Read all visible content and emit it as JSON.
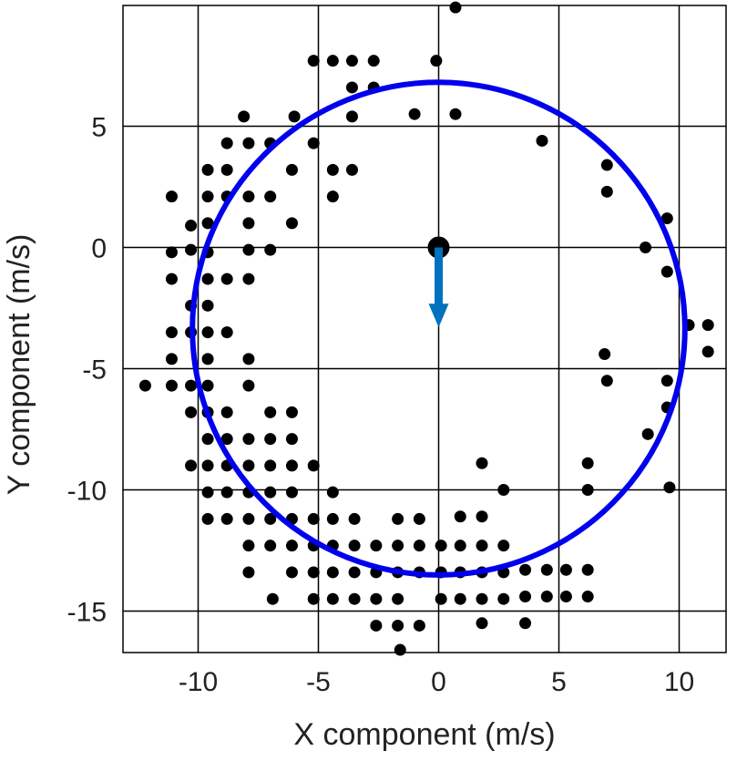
{
  "chart_data": {
    "type": "scatter",
    "title": "",
    "xlabel": "X component (m/s)",
    "ylabel": "Y component (m/s)",
    "xlim": [
      -13,
      13
    ],
    "ylim": [
      -16.7,
      10
    ],
    "grid": true,
    "xticks": [
      -10,
      -5,
      0,
      5,
      10
    ],
    "yticks": [
      5,
      0,
      -5,
      -10,
      -15
    ],
    "xtick_labels": [
      "-10",
      "-5",
      "0",
      "5",
      "10"
    ],
    "ytick_labels": [
      "5",
      "0",
      "-5",
      "-10",
      "-15"
    ],
    "colors": {
      "points": "#000000",
      "circle": "#0000ee",
      "arrow": "#0072bd",
      "grid": "#000000"
    },
    "circle": {
      "center": [
        0,
        -3.35
      ],
      "radius": 10.2
    },
    "origin_marker": [
      0,
      0
    ],
    "arrow": {
      "from": [
        0,
        0
      ],
      "to": [
        0,
        -3.3
      ]
    },
    "points": [
      [
        0.7,
        9.9
      ],
      [
        -5.2,
        7.7
      ],
      [
        -4.4,
        7.7
      ],
      [
        -3.6,
        7.7
      ],
      [
        -2.7,
        7.7
      ],
      [
        -0.1,
        7.7
      ],
      [
        -3.6,
        6.6
      ],
      [
        -2.7,
        6.6
      ],
      [
        -8.1,
        5.4
      ],
      [
        -6.0,
        5.4
      ],
      [
        -3.6,
        5.4
      ],
      [
        -1.0,
        5.5
      ],
      [
        0.7,
        5.5
      ],
      [
        -8.8,
        4.3
      ],
      [
        -7.9,
        4.3
      ],
      [
        -7.0,
        4.3
      ],
      [
        -5.2,
        4.3
      ],
      [
        4.3,
        4.4
      ],
      [
        -9.6,
        3.2
      ],
      [
        -8.8,
        3.2
      ],
      [
        -6.1,
        3.2
      ],
      [
        -4.4,
        3.2
      ],
      [
        -3.6,
        3.2
      ],
      [
        7.0,
        3.4
      ],
      [
        -11.1,
        2.1
      ],
      [
        -9.6,
        2.1
      ],
      [
        -8.8,
        2.1
      ],
      [
        -7.9,
        2.1
      ],
      [
        -7.0,
        2.1
      ],
      [
        -4.4,
        2.1
      ],
      [
        7.0,
        2.3
      ],
      [
        -10.3,
        0.9
      ],
      [
        -9.6,
        1.0
      ],
      [
        -7.9,
        1.0
      ],
      [
        -6.1,
        1.0
      ],
      [
        9.5,
        1.2
      ],
      [
        -11.1,
        -0.2
      ],
      [
        -10.3,
        -0.1
      ],
      [
        -9.6,
        -0.2
      ],
      [
        -7.9,
        -0.1
      ],
      [
        -7.0,
        -0.1
      ],
      [
        8.6,
        0.0
      ],
      [
        -11.1,
        -1.3
      ],
      [
        -9.6,
        -1.3
      ],
      [
        -8.8,
        -1.3
      ],
      [
        -7.9,
        -1.3
      ],
      [
        9.5,
        -1.0
      ],
      [
        -10.3,
        -2.4
      ],
      [
        -9.6,
        -2.4
      ],
      [
        -11.1,
        -3.5
      ],
      [
        -10.3,
        -3.5
      ],
      [
        -9.6,
        -3.5
      ],
      [
        -8.8,
        -3.5
      ],
      [
        10.4,
        -3.2
      ],
      [
        11.2,
        -3.2
      ],
      [
        -11.1,
        -4.6
      ],
      [
        -9.6,
        -4.6
      ],
      [
        -7.9,
        -4.6
      ],
      [
        6.9,
        -4.4
      ],
      [
        11.2,
        -4.3
      ],
      [
        -12.2,
        -5.7
      ],
      [
        -11.1,
        -5.7
      ],
      [
        -10.3,
        -5.7
      ],
      [
        -9.6,
        -5.7
      ],
      [
        -7.9,
        -5.7
      ],
      [
        7.0,
        -5.5
      ],
      [
        9.5,
        -5.5
      ],
      [
        -10.3,
        -6.8
      ],
      [
        -9.6,
        -6.8
      ],
      [
        -8.8,
        -6.8
      ],
      [
        -7.0,
        -6.8
      ],
      [
        -6.1,
        -6.8
      ],
      [
        9.5,
        -6.6
      ],
      [
        -9.6,
        -7.9
      ],
      [
        -8.8,
        -7.9
      ],
      [
        -7.9,
        -7.9
      ],
      [
        -7.0,
        -7.9
      ],
      [
        -6.1,
        -7.9
      ],
      [
        8.7,
        -7.7
      ],
      [
        -10.3,
        -9.0
      ],
      [
        -9.6,
        -9.0
      ],
      [
        -8.8,
        -9.0
      ],
      [
        -7.9,
        -9.0
      ],
      [
        -7.0,
        -9.0
      ],
      [
        -6.1,
        -9.0
      ],
      [
        -5.2,
        -9.0
      ],
      [
        1.8,
        -8.9
      ],
      [
        6.2,
        -8.9
      ],
      [
        -9.6,
        -10.1
      ],
      [
        -8.8,
        -10.1
      ],
      [
        -7.9,
        -10.1
      ],
      [
        -7.0,
        -10.1
      ],
      [
        -6.1,
        -10.1
      ],
      [
        -4.4,
        -10.1
      ],
      [
        2.7,
        -10.0
      ],
      [
        6.2,
        -10.0
      ],
      [
        9.6,
        -9.9
      ],
      [
        -9.6,
        -11.2
      ],
      [
        -8.8,
        -11.2
      ],
      [
        -7.9,
        -11.2
      ],
      [
        -7.0,
        -11.2
      ],
      [
        -6.1,
        -11.2
      ],
      [
        -5.2,
        -11.2
      ],
      [
        -4.4,
        -11.2
      ],
      [
        -3.5,
        -11.2
      ],
      [
        -1.7,
        -11.2
      ],
      [
        -0.8,
        -11.2
      ],
      [
        0.9,
        -11.1
      ],
      [
        1.8,
        -11.1
      ],
      [
        -7.9,
        -12.3
      ],
      [
        -7.0,
        -12.3
      ],
      [
        -6.1,
        -12.3
      ],
      [
        -5.2,
        -12.3
      ],
      [
        -4.4,
        -12.3
      ],
      [
        -3.5,
        -12.3
      ],
      [
        -2.6,
        -12.3
      ],
      [
        -1.7,
        -12.3
      ],
      [
        -0.8,
        -12.3
      ],
      [
        0.1,
        -12.3
      ],
      [
        0.9,
        -12.3
      ],
      [
        1.8,
        -12.3
      ],
      [
        2.7,
        -12.3
      ],
      [
        -7.9,
        -13.4
      ],
      [
        -6.1,
        -13.4
      ],
      [
        -5.2,
        -13.4
      ],
      [
        -4.4,
        -13.4
      ],
      [
        -3.5,
        -13.4
      ],
      [
        -2.6,
        -13.4
      ],
      [
        -1.7,
        -13.4
      ],
      [
        -0.8,
        -13.4
      ],
      [
        0.1,
        -13.4
      ],
      [
        0.9,
        -13.4
      ],
      [
        1.8,
        -13.4
      ],
      [
        2.7,
        -13.4
      ],
      [
        3.6,
        -13.3
      ],
      [
        4.5,
        -13.3
      ],
      [
        5.3,
        -13.3
      ],
      [
        6.2,
        -13.3
      ],
      [
        -6.9,
        -14.5
      ],
      [
        -5.2,
        -14.5
      ],
      [
        -4.4,
        -14.5
      ],
      [
        -3.5,
        -14.5
      ],
      [
        -2.6,
        -14.5
      ],
      [
        -1.7,
        -14.5
      ],
      [
        0.1,
        -14.5
      ],
      [
        0.9,
        -14.5
      ],
      [
        1.8,
        -14.5
      ],
      [
        2.7,
        -14.5
      ],
      [
        3.6,
        -14.4
      ],
      [
        4.5,
        -14.4
      ],
      [
        5.3,
        -14.4
      ],
      [
        6.2,
        -14.4
      ],
      [
        -2.6,
        -15.6
      ],
      [
        -1.7,
        -15.6
      ],
      [
        -0.8,
        -15.6
      ],
      [
        1.8,
        -15.5
      ],
      [
        3.6,
        -15.5
      ],
      [
        -1.6,
        -16.6
      ]
    ]
  }
}
